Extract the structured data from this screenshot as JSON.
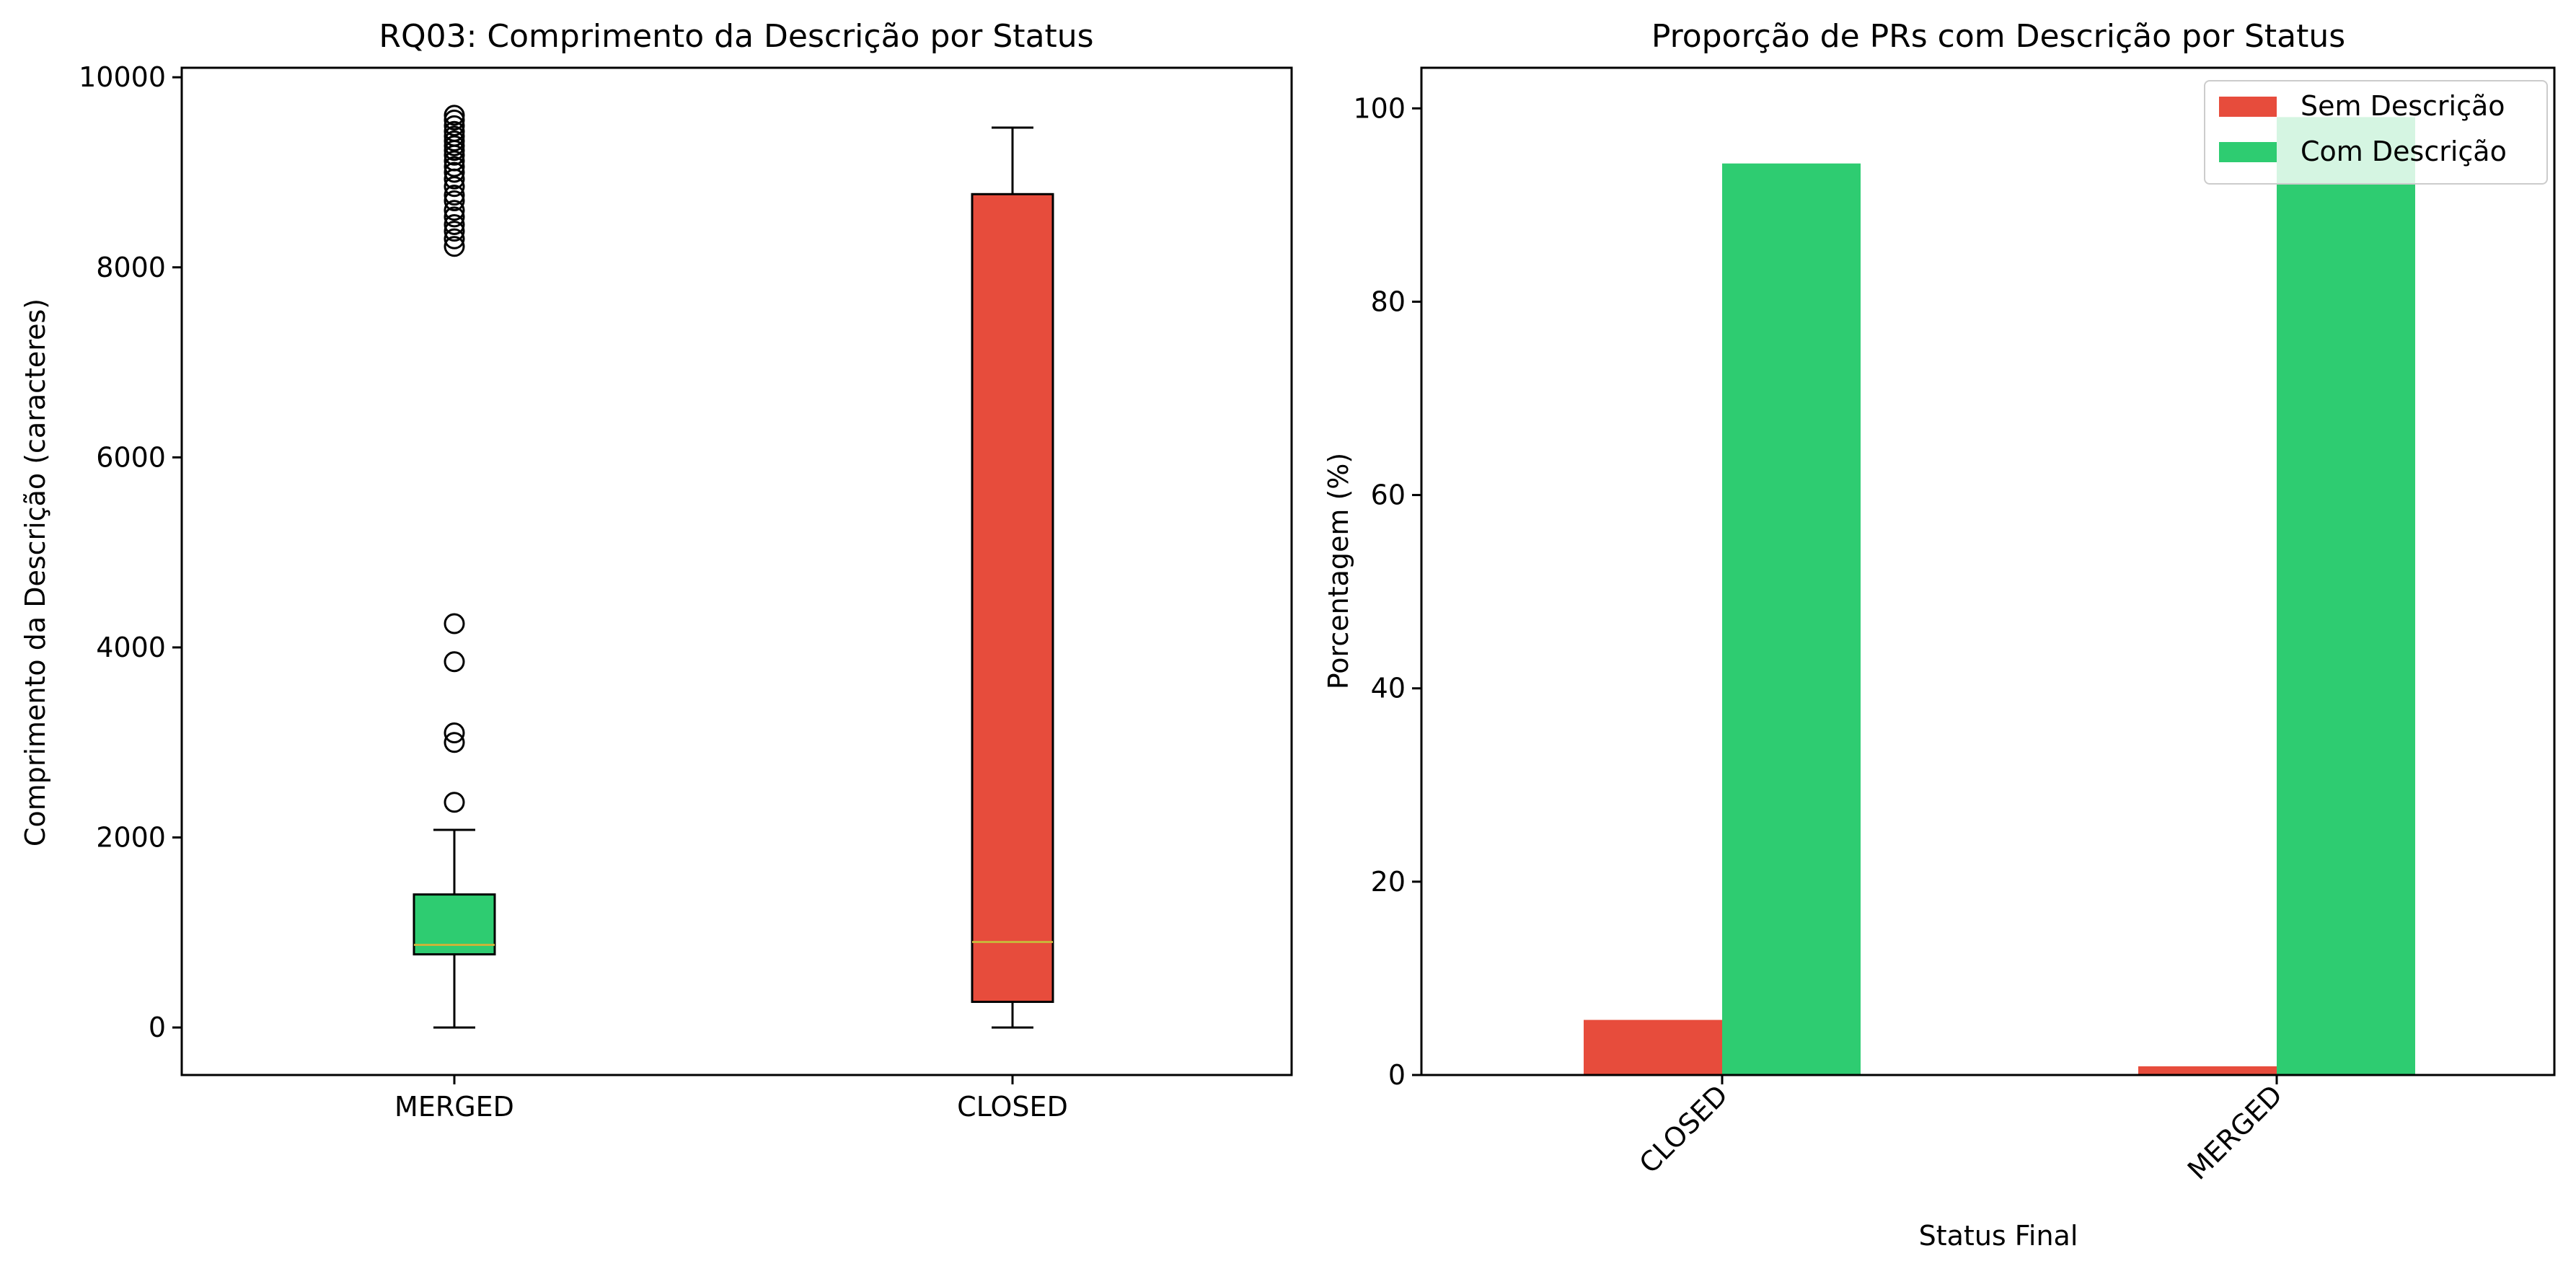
{
  "chart_data": [
    {
      "type": "box",
      "title": "RQ03: Comprimento da Descrição por Status",
      "xlabel": "",
      "ylabel": "Comprimento da Descrição (caracteres)",
      "ylim": [
        -500,
        10100
      ],
      "yticks": [
        0,
        2000,
        4000,
        6000,
        8000,
        10000
      ],
      "grid": false,
      "categories": [
        "MERGED",
        "CLOSED"
      ],
      "boxes": [
        {
          "category": "MERGED",
          "color": "#2ecc71",
          "min": 0,
          "q1": 770,
          "median": 870,
          "q3": 1400,
          "max": 2080,
          "outliers": [
            2370,
            3000,
            3100,
            3850,
            4250,
            8220,
            8300,
            8380,
            8450,
            8530,
            8600,
            8700,
            8760,
            8850,
            8930,
            9000,
            9060,
            9120,
            9180,
            9230,
            9280,
            9330,
            9380,
            9430,
            9490,
            9550,
            9600
          ]
        },
        {
          "category": "CLOSED",
          "color": "#e74c3c",
          "min": 0,
          "q1": 270,
          "median": 900,
          "q3": 8770,
          "max": 9470,
          "outliers": []
        }
      ],
      "median_color": "#c9b43a"
    },
    {
      "type": "bar",
      "title": "Proporção de PRs com Descrição por Status",
      "xlabel": "Status Final",
      "ylabel": "Porcentagem (%)",
      "ylim": [
        0,
        104.2
      ],
      "yticks": [
        0,
        20,
        40,
        60,
        80,
        100
      ],
      "grid": false,
      "categories": [
        "CLOSED",
        "MERGED"
      ],
      "x_tick_rotation_deg": 45,
      "legend": "top-right",
      "series": [
        {
          "name": "Sem Descrição",
          "color": "#e74c3c",
          "values": [
            5.7,
            0.9
          ]
        },
        {
          "name": "Com Descrição",
          "color": "#2ecc71",
          "values": [
            94.3,
            99.1
          ]
        }
      ]
    }
  ]
}
